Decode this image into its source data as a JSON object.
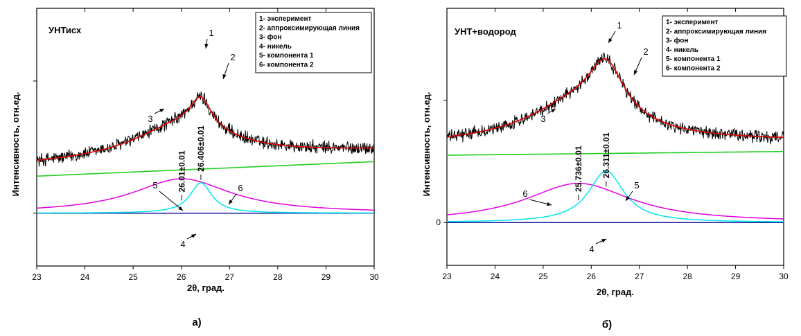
{
  "chart_data": [
    {
      "type": "line",
      "title": "УНТисх",
      "caption": "а)",
      "xlabel": "2θ, град.",
      "ylabel": "Интенсивность, отн.ед.",
      "xlim": [
        23,
        30
      ],
      "x_ticks": [
        "23",
        "24",
        "25",
        "26",
        "27",
        "28",
        "29",
        "30"
      ],
      "y_ticks": [],
      "legend_position": "top-right",
      "legend": [
        "1- эксперимент",
        "2- аппроксимирующая линия",
        "3- фон",
        "4- никель",
        "5- компонента 1",
        "6- компонента 2"
      ],
      "peak_annotations": [
        {
          "text": "26.01±0.01",
          "x": 26.01
        },
        {
          "text": "26.406±0.01",
          "x": 26.406
        }
      ],
      "curve_labels": [
        "1",
        "2",
        "3",
        "4",
        "5",
        "6"
      ],
      "components": {
        "background": {
          "x": [
            23,
            30
          ],
          "y": [
            0.28,
            0.39
          ]
        },
        "component_1": {
          "center": 26.406,
          "height": 0.23,
          "fwhm": 0.55,
          "color": "#00e5ee"
        },
        "component_2": {
          "center": 26.01,
          "height": 0.26,
          "fwhm": 2.5,
          "color": "#e000e0"
        },
        "nickel": {
          "y": 0.0,
          "color": "#1a1a9a"
        },
        "fit": {
          "color": "#e00000"
        },
        "experiment": {
          "color": "#000000",
          "noise": 0.045
        }
      },
      "ylim": [
        -0.4,
        1.55
      ]
    },
    {
      "type": "line",
      "title": "УНТ+водород",
      "caption": "б)",
      "xlabel": "2θ, град.",
      "ylabel": "Интенсивность, отн.ед.",
      "xlim": [
        23,
        30
      ],
      "x_ticks": [
        "23",
        "24",
        "25",
        "26",
        "27",
        "28",
        "29",
        "30"
      ],
      "y_ticks": [
        "0"
      ],
      "legend_position": "top-right",
      "legend": [
        "1- эксперимент",
        "2- аппроксимирующая линия",
        "3- фон",
        "4- никель",
        "5- компонента 1",
        "6- компонента 2"
      ],
      "peak_annotations": [
        {
          "text": "25.736±0.01",
          "x": 25.736
        },
        {
          "text": "26.311±0.01",
          "x": 26.311
        }
      ],
      "curve_labels": [
        "1",
        "2",
        "3",
        "4",
        "5",
        "6"
      ],
      "components": {
        "background": {
          "x": [
            23,
            30
          ],
          "y": [
            0.55,
            0.58
          ]
        },
        "component_1": {
          "center": 26.311,
          "height": 0.42,
          "fwhm": 0.9,
          "color": "#00e5ee"
        },
        "component_2": {
          "center": 25.736,
          "height": 0.32,
          "fwhm": 2.7,
          "color": "#e000e0"
        },
        "nickel": {
          "y": 0.0,
          "color": "#1a1a9a"
        },
        "fit": {
          "color": "#e00000"
        },
        "experiment": {
          "color": "#000000",
          "noise": 0.045
        }
      },
      "ylim": [
        -0.35,
        1.75
      ]
    }
  ]
}
